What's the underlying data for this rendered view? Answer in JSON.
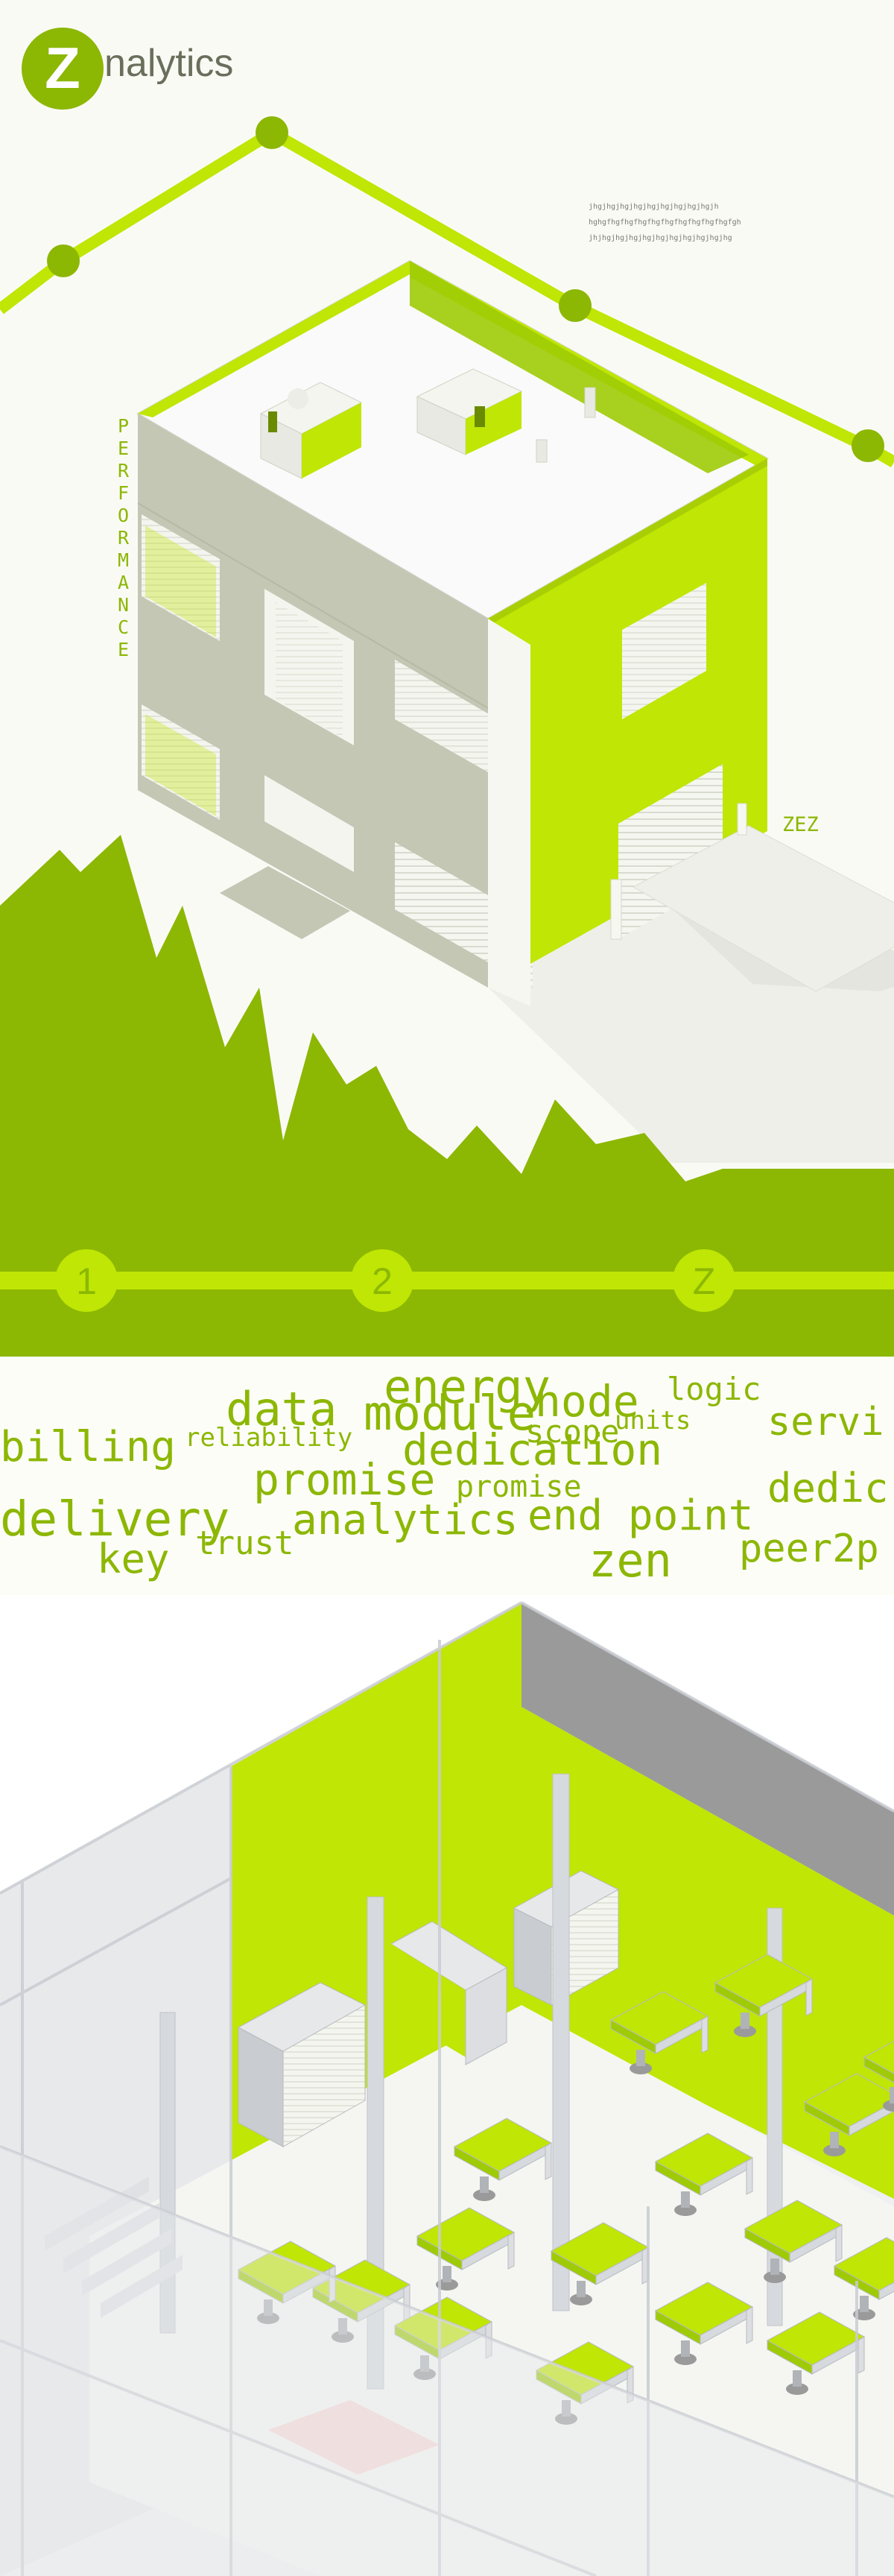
{
  "colors": {
    "lime": "#bfe604",
    "lime_dark": "#8cb703",
    "lime_mid": "#9fcb06",
    "gray_wall": "#c3c7b4",
    "gray_dark": "#9a9a9a",
    "white_wall": "#f3f4ee"
  },
  "logo": {
    "mark": "Z",
    "wordmark": "nalytics"
  },
  "building": {
    "vertical_label": "PERFORMANCE",
    "sign": "ZEZ",
    "noise_lines": [
      "jhgjhgjhgjhgjhgjhgjhgjhgjhgjh",
      "hghgfhgfhgfhgfhgfhgfhgfhgfhgfhgfgh",
      "jhjhgjhgjhgjhgjhgjhgjhgjhgjhgjhg"
    ]
  },
  "steps": {
    "items": [
      "1",
      "2",
      "Z"
    ]
  },
  "word_cloud": {
    "words": [
      "energy",
      "node",
      "logic",
      "data",
      "module",
      "units",
      "servi",
      "billing",
      "reliability",
      "scope",
      "dedication",
      "promise",
      "promise",
      "dedic",
      "delivery",
      "analytics",
      "end point",
      "trust",
      "key",
      "zen",
      "peer2p"
    ]
  }
}
